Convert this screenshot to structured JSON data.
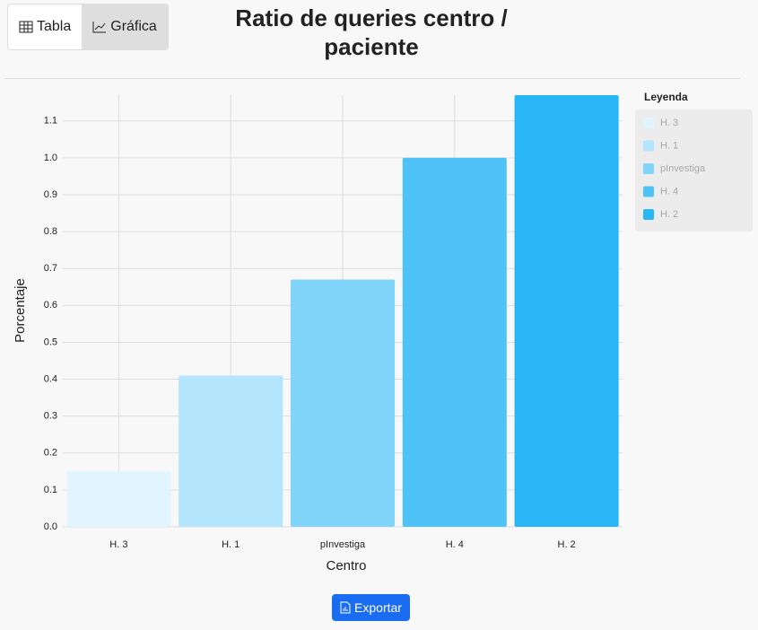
{
  "ui": {
    "buttons": {
      "table": "Tabla",
      "chart": "Gráfica",
      "export": "Exportar"
    }
  },
  "chart_data": {
    "type": "bar",
    "title": "Ratio de queries centro / paciente",
    "categories": [
      "H. 3",
      "H. 1",
      "pInvestiga",
      "H. 4",
      "H. 2"
    ],
    "values": [
      0.15,
      0.41,
      0.67,
      1.0,
      1.17
    ],
    "colors": [
      "#e1f5fe",
      "#b3e5fc",
      "#81d4fa",
      "#4fc3f7",
      "#29b6f6"
    ],
    "xlabel": "Centro",
    "ylabel": "Porcentaje",
    "ylim": [
      0,
      1.17
    ],
    "yticks": [
      {
        "value": 0,
        "label": "0.0"
      },
      0.1,
      0.2,
      0.3,
      0.4,
      0.5,
      0.6,
      0.7,
      0.8,
      0.9,
      {
        "value": 1,
        "label": "1.0"
      },
      1.1
    ],
    "grid": true,
    "legend_title": "Leyenda",
    "legend_position": "right"
  }
}
